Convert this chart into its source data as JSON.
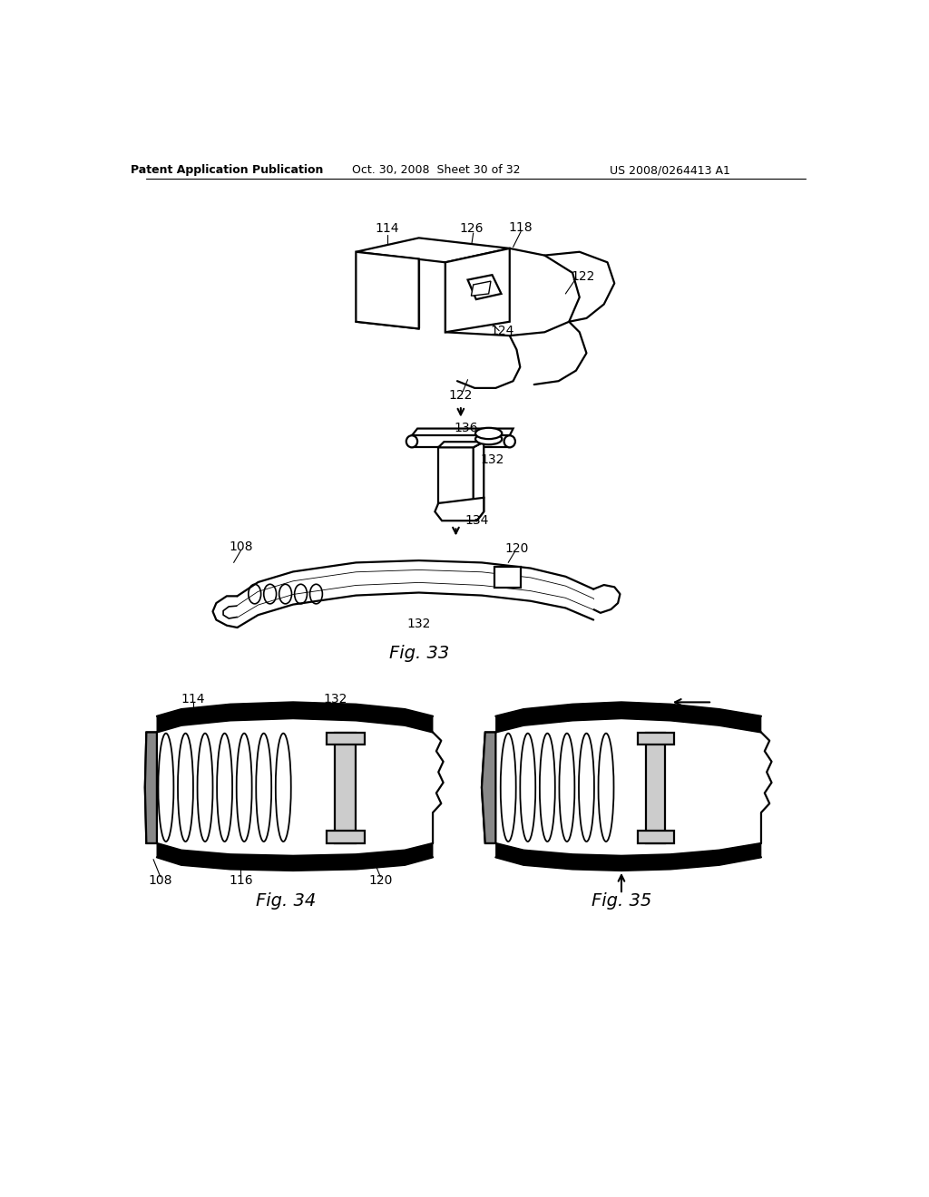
{
  "bg_color": "#ffffff",
  "line_color": "#000000",
  "header_left": "Patent Application Publication",
  "header_mid": "Oct. 30, 2008  Sheet 30 of 32",
  "header_right": "US 2008/0264413 A1",
  "fig33_label": "Fig. 33",
  "fig34_label": "Fig. 34",
  "fig35_label": "Fig. 35"
}
